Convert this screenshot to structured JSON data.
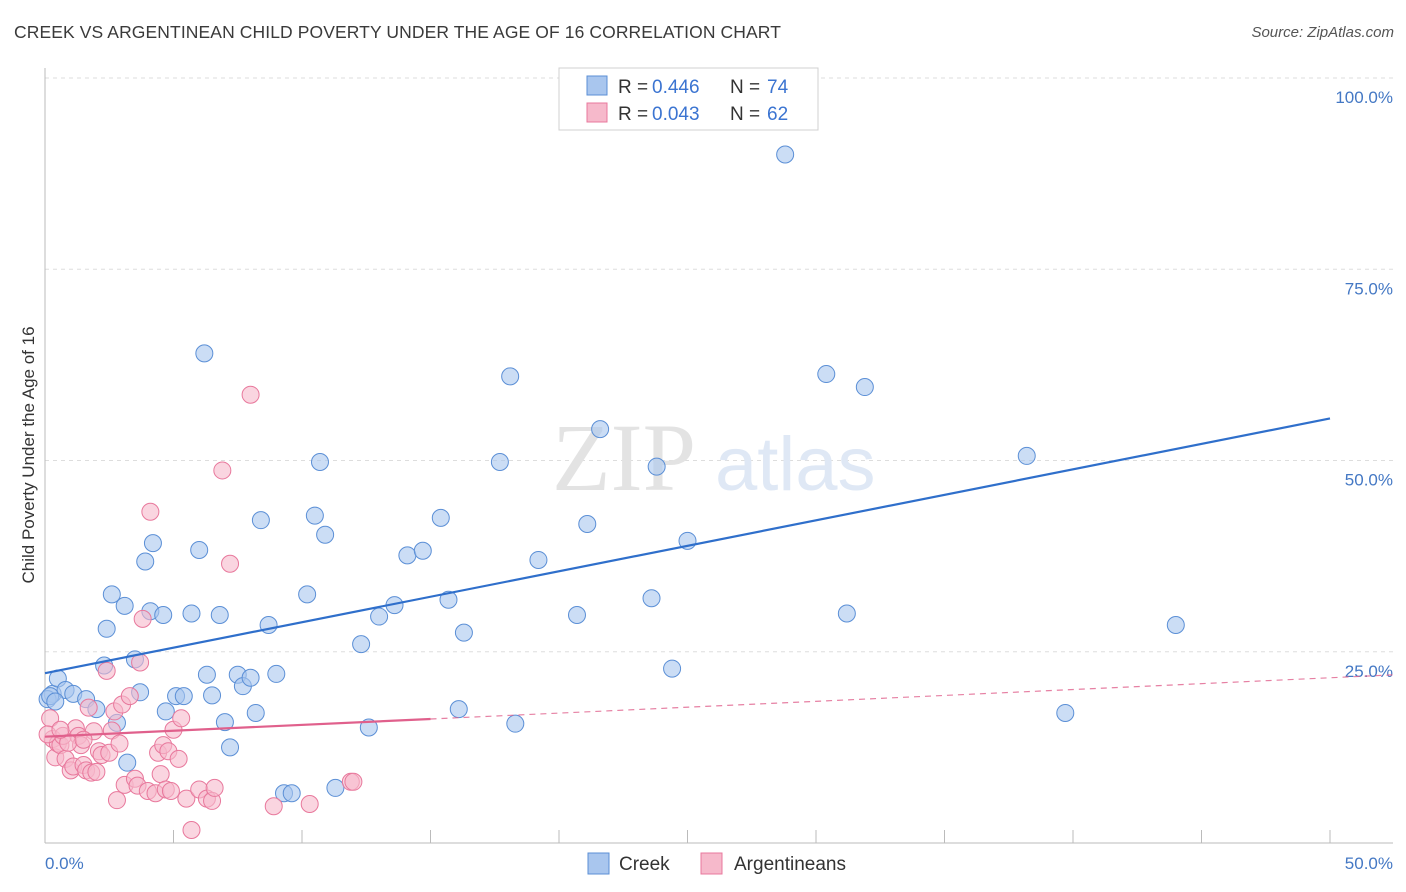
{
  "header": {
    "title": "CREEK VS ARGENTINEAN CHILD POVERTY UNDER THE AGE OF 16 CORRELATION CHART",
    "source": "Source: ZipAtlas.com"
  },
  "watermark": {
    "zip": "ZIP",
    "atlas": "atlas"
  },
  "legend_top": {
    "creek": {
      "r_label": "R =",
      "r_value": "0.446",
      "n_label": "N =",
      "n_value": "74"
    },
    "argentineans": {
      "r_label": "R =",
      "r_value": "0.043",
      "n_label": "N =",
      "n_value": "62"
    }
  },
  "legend_bottom": {
    "creek": "Creek",
    "argentineans": "Argentineans"
  },
  "colors": {
    "creek_fill": "#a9c6ee",
    "creek_stroke": "#5b8fd6",
    "creek_line": "#2f6fcb",
    "arg_fill": "#f6b9cb",
    "arg_stroke": "#e8789c",
    "arg_line": "#e0608c",
    "grid": "#dddddd",
    "tick_label": "#4478c4"
  },
  "chart_data": {
    "type": "scatter",
    "title": "CREEK VS ARGENTINEAN CHILD POVERTY UNDER THE AGE OF 16 CORRELATION CHART",
    "xlabel": "",
    "ylabel": "Child Poverty Under the Age of 16",
    "xlim": [
      0,
      50
    ],
    "ylim": [
      0,
      100
    ],
    "x_tick_labels": [
      "0.0%",
      "50.0%"
    ],
    "y_tick_labels": [
      "25.0%",
      "50.0%",
      "75.0%",
      "100.0%"
    ],
    "y_ticks": [
      25,
      50,
      75,
      100
    ],
    "x_ticks": [
      0,
      5,
      10,
      15,
      20,
      25,
      30,
      35,
      40,
      45,
      50
    ],
    "series": [
      {
        "name": "Creek",
        "r": 0.446,
        "n": 74,
        "trend": {
          "x0": 0,
          "y0": 22.2,
          "x1": 50,
          "y1": 55.5,
          "dashed_from": null
        },
        "points": [
          [
            0.3,
            19.5
          ],
          [
            0.5,
            21.5
          ],
          [
            0.8,
            20
          ],
          [
            1.1,
            19.5
          ],
          [
            1.6,
            18.8
          ],
          [
            2.0,
            17.5
          ],
          [
            2.3,
            23.2
          ],
          [
            2.4,
            28
          ],
          [
            2.6,
            32.5
          ],
          [
            2.8,
            15.7
          ],
          [
            3.1,
            31
          ],
          [
            3.2,
            10.5
          ],
          [
            3.5,
            24
          ],
          [
            3.7,
            19.7
          ],
          [
            3.9,
            36.8
          ],
          [
            4.1,
            30.3
          ],
          [
            4.2,
            39.2
          ],
          [
            4.6,
            29.8
          ],
          [
            4.7,
            17.2
          ],
          [
            5.1,
            19.2
          ],
          [
            5.4,
            19.2
          ],
          [
            5.7,
            30
          ],
          [
            6.0,
            38.3
          ],
          [
            6.2,
            64
          ],
          [
            6.3,
            22
          ],
          [
            6.5,
            19.3
          ],
          [
            6.8,
            29.8
          ],
          [
            7.0,
            15.8
          ],
          [
            7.2,
            12.5
          ],
          [
            7.5,
            22
          ],
          [
            7.7,
            20.5
          ],
          [
            8.0,
            21.6
          ],
          [
            8.2,
            17
          ],
          [
            8.4,
            42.2
          ],
          [
            8.7,
            28.5
          ],
          [
            9.0,
            22.1
          ],
          [
            9.3,
            6.5
          ],
          [
            9.6,
            6.5
          ],
          [
            10.2,
            32.5
          ],
          [
            10.5,
            42.8
          ],
          [
            10.7,
            49.8
          ],
          [
            10.9,
            40.3
          ],
          [
            11.3,
            7.2
          ],
          [
            12.3,
            26
          ],
          [
            12.6,
            15.1
          ],
          [
            13.0,
            29.6
          ],
          [
            13.6,
            31.1
          ],
          [
            14.1,
            37.6
          ],
          [
            14.7,
            38.2
          ],
          [
            15.4,
            42.5
          ],
          [
            15.7,
            31.8
          ],
          [
            16.1,
            17.5
          ],
          [
            16.3,
            27.5
          ],
          [
            17.7,
            49.8
          ],
          [
            18.1,
            61
          ],
          [
            18.3,
            15.6
          ],
          [
            19.2,
            37
          ],
          [
            20.7,
            29.8
          ],
          [
            21.1,
            41.7
          ],
          [
            21.6,
            54.1
          ],
          [
            23.6,
            32
          ],
          [
            23.8,
            49.2
          ],
          [
            24.4,
            22.8
          ],
          [
            25.0,
            39.5
          ],
          [
            28.8,
            90
          ],
          [
            30.4,
            61.3
          ],
          [
            31.2,
            30
          ],
          [
            31.9,
            59.6
          ],
          [
            38.2,
            50.6
          ],
          [
            39.7,
            17
          ],
          [
            44.0,
            28.5
          ],
          [
            0.1,
            18.8
          ],
          [
            0.2,
            19.2
          ],
          [
            0.4,
            18.5
          ]
        ]
      },
      {
        "name": "Argentineans",
        "r": 0.043,
        "n": 62,
        "trend": {
          "x0": 0,
          "y0": 13.9,
          "x1": 50,
          "y1": 21.6,
          "dashed_from": 15
        },
        "points": [
          [
            0.2,
            16.3
          ],
          [
            0.3,
            13.6
          ],
          [
            0.4,
            11.2
          ],
          [
            0.5,
            13
          ],
          [
            0.6,
            12.8
          ],
          [
            0.7,
            14
          ],
          [
            0.8,
            11
          ],
          [
            1.0,
            9.5
          ],
          [
            1.1,
            10
          ],
          [
            1.2,
            15
          ],
          [
            1.3,
            14
          ],
          [
            1.4,
            12.8
          ],
          [
            1.5,
            10.2
          ],
          [
            1.6,
            9.5
          ],
          [
            1.7,
            17.7
          ],
          [
            1.8,
            9.2
          ],
          [
            1.9,
            14.6
          ],
          [
            2.1,
            12
          ],
          [
            2.2,
            11.5
          ],
          [
            2.4,
            22.5
          ],
          [
            2.5,
            11.8
          ],
          [
            2.6,
            14.7
          ],
          [
            2.7,
            17.2
          ],
          [
            2.8,
            5.6
          ],
          [
            2.9,
            13
          ],
          [
            3.0,
            18.1
          ],
          [
            3.1,
            7.6
          ],
          [
            3.3,
            19.2
          ],
          [
            3.5,
            8.4
          ],
          [
            3.6,
            7.5
          ],
          [
            3.7,
            23.6
          ],
          [
            3.8,
            29.3
          ],
          [
            4.0,
            6.8
          ],
          [
            4.1,
            43.3
          ],
          [
            4.3,
            6.5
          ],
          [
            4.4,
            11.8
          ],
          [
            4.5,
            9
          ],
          [
            4.6,
            12.8
          ],
          [
            4.7,
            7
          ],
          [
            4.8,
            12
          ],
          [
            4.9,
            6.8
          ],
          [
            5.0,
            14.8
          ],
          [
            5.2,
            11
          ],
          [
            5.3,
            16.3
          ],
          [
            5.5,
            5.8
          ],
          [
            5.7,
            1.7
          ],
          [
            6.0,
            7
          ],
          [
            6.3,
            5.8
          ],
          [
            6.5,
            5.5
          ],
          [
            6.6,
            7.2
          ],
          [
            6.9,
            48.7
          ],
          [
            7.2,
            36.5
          ],
          [
            8.0,
            58.6
          ],
          [
            8.9,
            4.8
          ],
          [
            10.3,
            5.1
          ],
          [
            11.9,
            8
          ],
          [
            12.0,
            8
          ],
          [
            0.1,
            14.2
          ],
          [
            0.9,
            13.1
          ],
          [
            1.5,
            13.5
          ],
          [
            2.0,
            9.3
          ],
          [
            0.6,
            14.8
          ]
        ]
      }
    ]
  }
}
